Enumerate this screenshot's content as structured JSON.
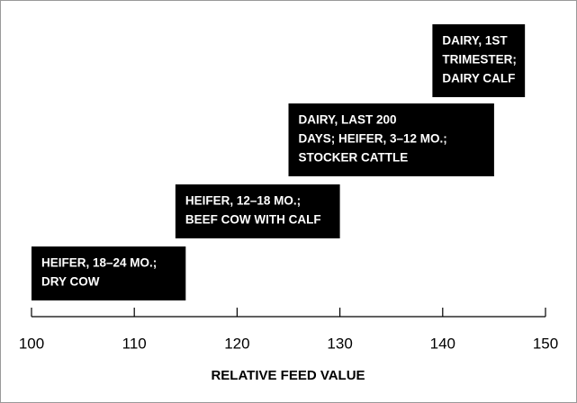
{
  "chart_data": {
    "type": "range",
    "xlabel": "RELATIVE FEED VALUE",
    "xlim": [
      100,
      150
    ],
    "xticks": [
      100,
      110,
      120,
      130,
      140,
      150
    ],
    "color": "#000000",
    "bars": [
      {
        "label": [
          "HEIFER, 18–24 MO.;",
          "DRY COW"
        ],
        "start": 100,
        "end": 115
      },
      {
        "label": [
          "HEIFER, 12–18 MO.;",
          "BEEF COW WITH CALF"
        ],
        "start": 114,
        "end": 130
      },
      {
        "label": [
          "DAIRY, LAST 200",
          "DAYS; HEIFER, 3–12 MO.;",
          "STOCKER CATTLE"
        ],
        "start": 125,
        "end": 145
      },
      {
        "label": [
          "DAIRY, 1ST",
          "TRIMESTER;",
          "DAIRY CALF"
        ],
        "start": 139,
        "end": 148
      }
    ]
  }
}
